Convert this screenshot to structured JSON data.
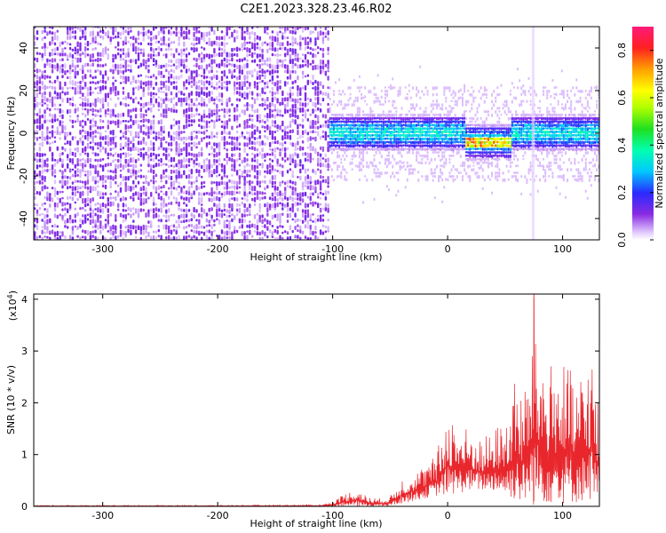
{
  "title": "C2E1.2023.328.23.46.R02",
  "colors": {
    "noise": "#8a2be2",
    "noise_light": "#e3cff5",
    "signal_line": "#e8262c",
    "axis": "#000000"
  },
  "chart_data": [
    {
      "type": "heatmap",
      "title": "C2E1.2023.328.23.46.R02",
      "xlabel": "Height of straight line (km)",
      "ylabel": "Frequency (Hz)",
      "xlim": [
        -360,
        132
      ],
      "ylim": [
        -50,
        50
      ],
      "xticks": [
        -300,
        -200,
        -100,
        0,
        100
      ],
      "yticks": [
        -40,
        -20,
        0,
        20,
        40
      ],
      "colorbar": {
        "label": "Normalized spectral amplitude",
        "range": [
          0.0,
          0.9
        ],
        "ticks": [
          "0.0",
          "0.2",
          "0.4",
          "0.6",
          "0.8"
        ],
        "tick_values": [
          0.0,
          0.2,
          0.4,
          0.6,
          0.8
        ]
      },
      "regions": [
        {
          "name": "noise",
          "x_range": [
            -360,
            -103
          ],
          "freq_range": [
            -50,
            50
          ],
          "amplitude": 0.1
        },
        {
          "name": "signal",
          "x_range": [
            -103,
            132
          ],
          "freq_center": 0,
          "freq_halfwidth": 10,
          "amplitude": 0.3
        },
        {
          "name": "peak",
          "x_range": [
            15,
            55
          ],
          "freq_center": -4,
          "amplitude": 0.85
        }
      ]
    },
    {
      "type": "line",
      "xlabel": "Height of straight line (km)",
      "ylabel": "SNR (10 * v/v)",
      "y_multiplier": "(x10",
      "y_multiplier_exp": "4",
      "y_multiplier_close": ")",
      "xlim": [
        -360,
        132
      ],
      "ylim": [
        0,
        4.1
      ],
      "xticks": [
        -300,
        -200,
        -100,
        0,
        100
      ],
      "yticks": [
        0,
        1,
        2,
        3,
        4
      ],
      "series": [
        {
          "name": "SNR envelope",
          "x": [
            -360,
            -300,
            -200,
            -110,
            -100,
            -90,
            -80,
            -70,
            -60,
            -50,
            -40,
            -30,
            -20,
            -10,
            0,
            10,
            20,
            30,
            40,
            50,
            60,
            65,
            70,
            75,
            80,
            90,
            100,
            110,
            120,
            125,
            128,
            130
          ],
          "max": [
            0.02,
            0.02,
            0.02,
            0.03,
            0.1,
            0.25,
            0.35,
            0.2,
            0.15,
            0.2,
            0.55,
            0.65,
            0.8,
            1.0,
            1.9,
            1.6,
            1.5,
            1.3,
            1.5,
            1.7,
            2.6,
            2.3,
            2.5,
            4.1,
            3.1,
            2.8,
            2.9,
            2.5,
            2.7,
            3.2,
            2.5,
            2.2
          ],
          "min": [
            0.0,
            0.0,
            0.0,
            0.0,
            0.0,
            0.0,
            0.0,
            0.0,
            0.0,
            0.0,
            0.05,
            0.1,
            0.15,
            0.2,
            0.2,
            0.25,
            0.3,
            0.3,
            0.3,
            0.2,
            0.1,
            0.05,
            0.1,
            0.0,
            0.05,
            0.05,
            0.05,
            0.05,
            0.1,
            0.1,
            0.05,
            0.05
          ]
        }
      ]
    }
  ]
}
